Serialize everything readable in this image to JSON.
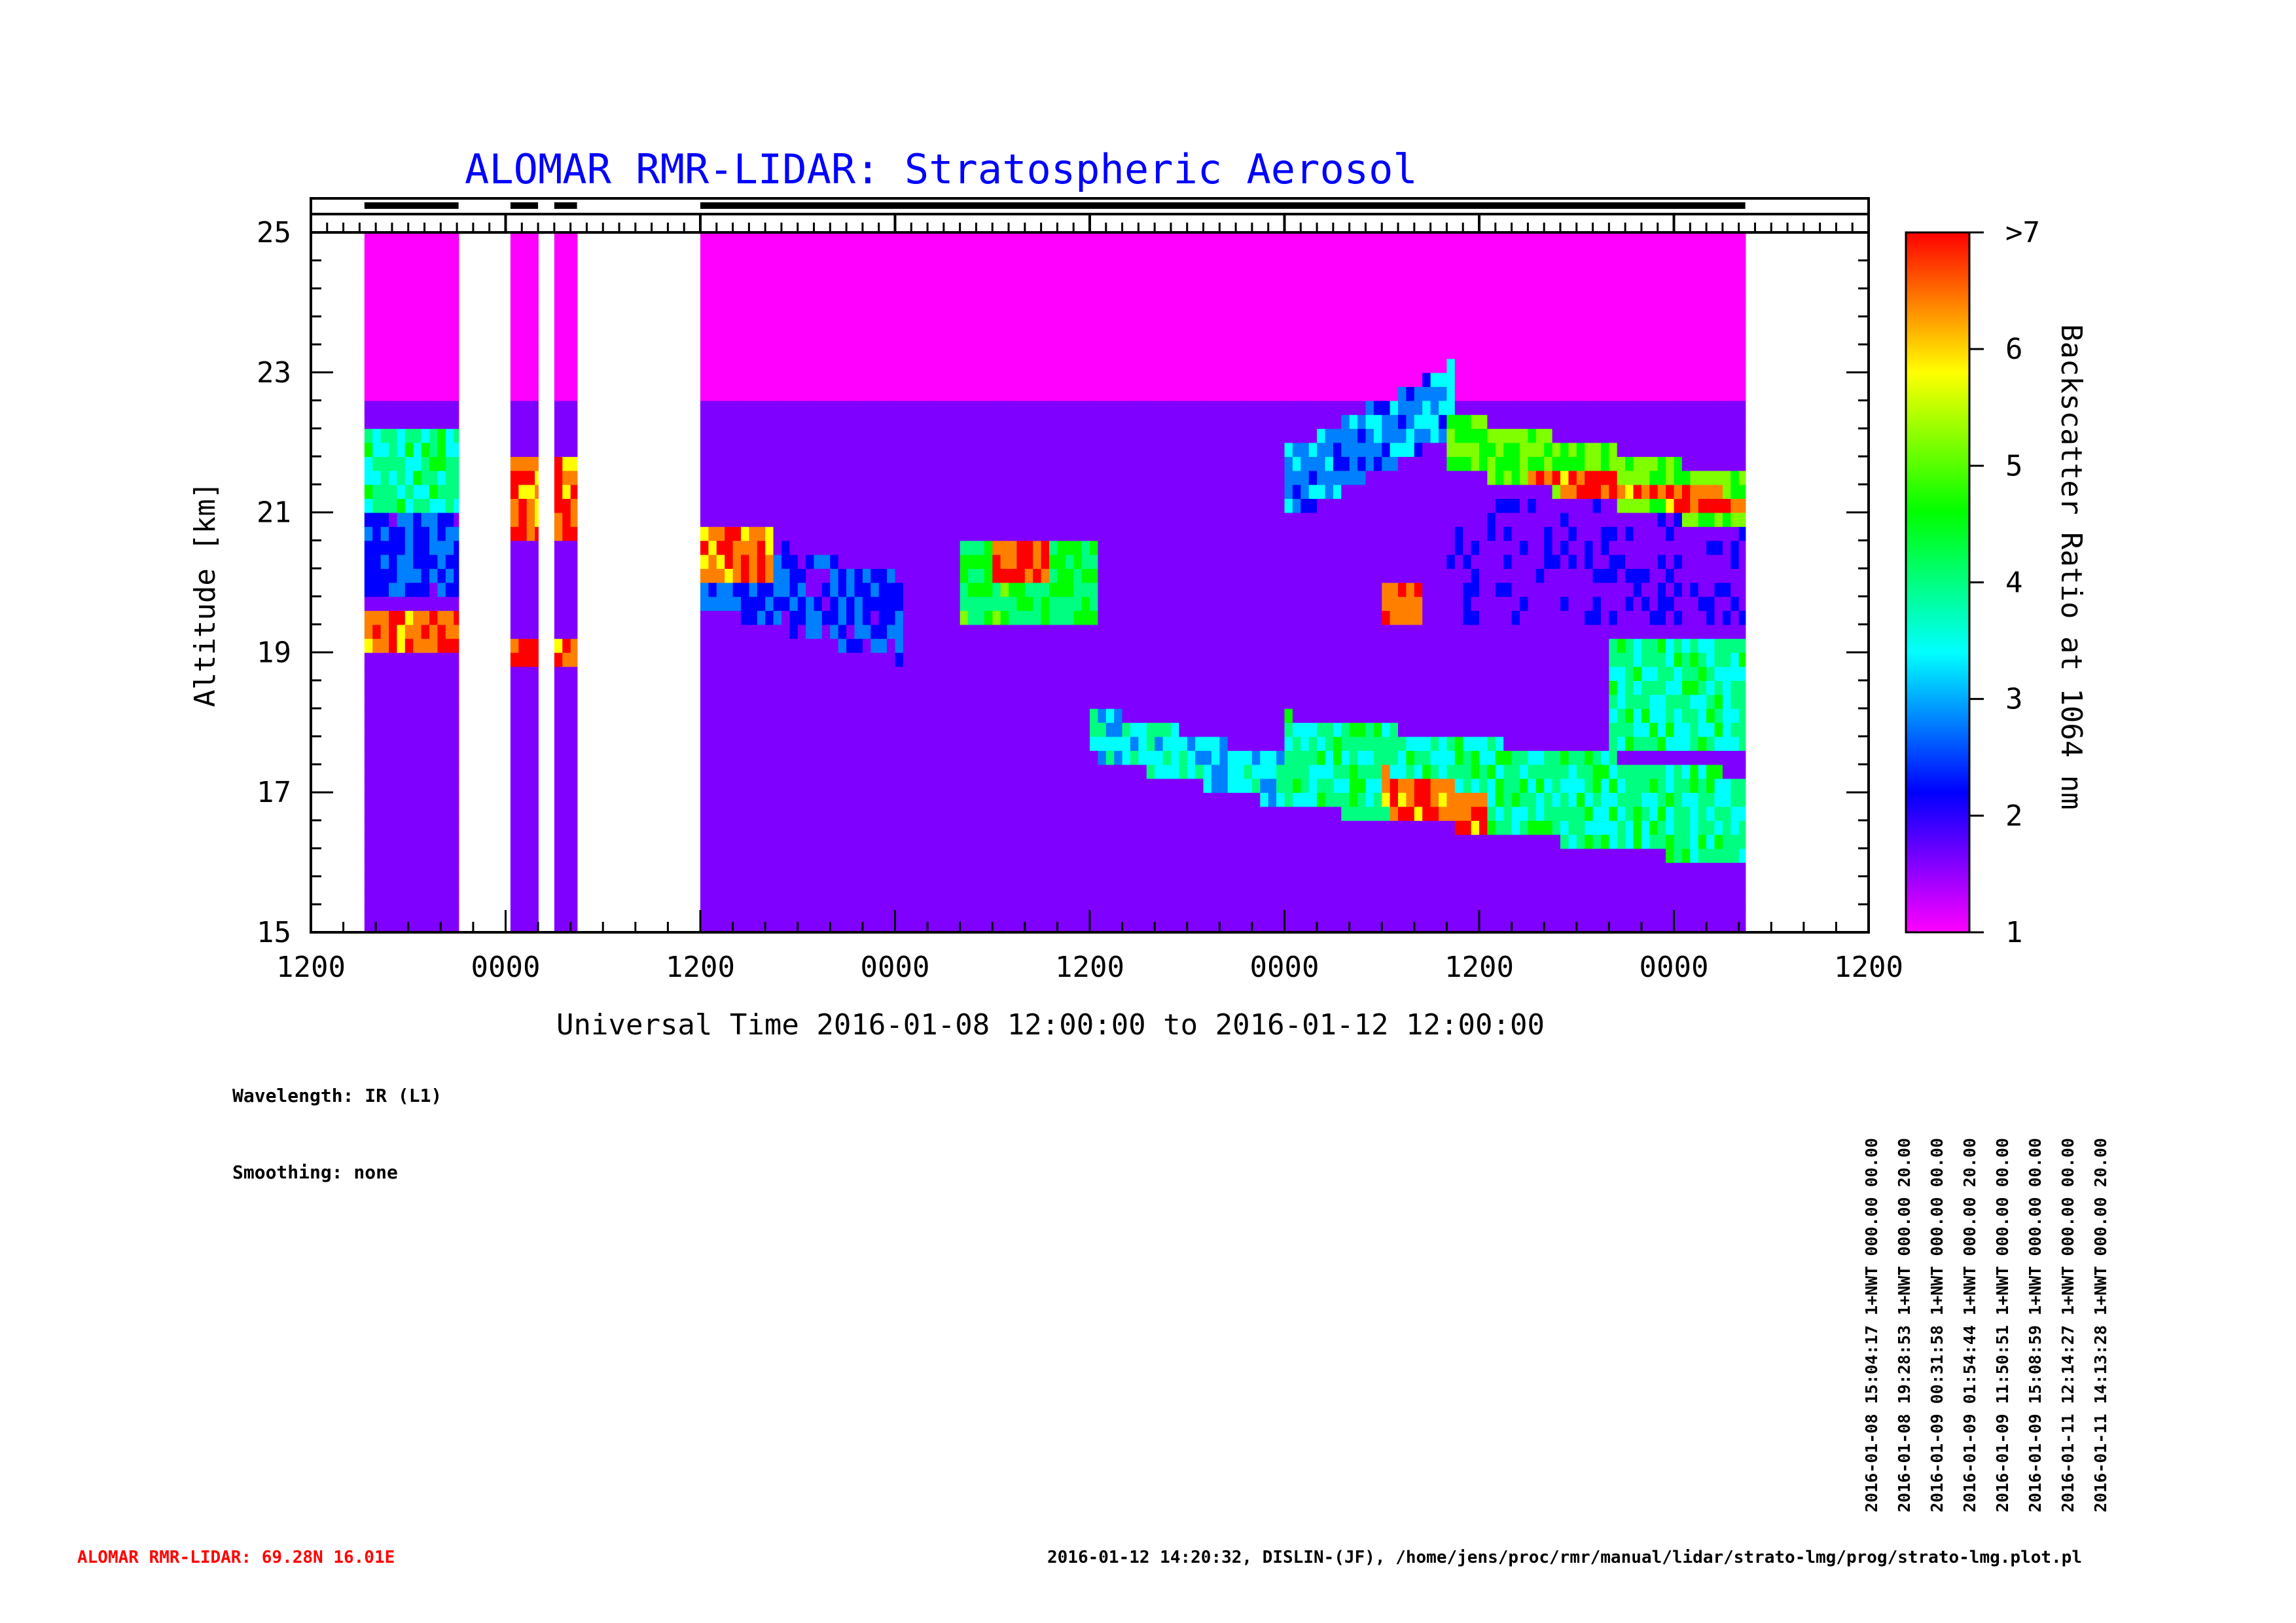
{
  "title": "ALOMAR RMR-LIDAR: Stratospheric Aerosol",
  "xlabel": "Universal Time 2016-01-08 12:00:00 to 2016-01-12 12:00:00",
  "ylabel": "Altitude [km]",
  "colorbar": {
    "label": "Backscatter Ratio at 1064 nm",
    "ticks": [
      "1",
      "2",
      "3",
      "4",
      "5",
      "6",
      ">7"
    ],
    "range": [
      1,
      7
    ],
    "colors": [
      "#ff00ff",
      "#8000ff",
      "#0000ff",
      "#0080ff",
      "#00ffff",
      "#00ff80",
      "#00ff00",
      "#80ff00",
      "#ffff00",
      "#ff8000",
      "#ff0000"
    ]
  },
  "info": {
    "wavelength": "Wavelength: IR (L1)",
    "smoothing": "Smoothing: none"
  },
  "runs": [
    "2016-01-08 15:04:17 1+NWT 000.00 00.00",
    "2016-01-08 19:28:53 1+NWT 000.00 20.00",
    "2016-01-09 00:31:58 1+NWT 000.00 00.00",
    "2016-01-09 01:54:44 1+NWT 000.00 20.00",
    "2016-01-09 11:50:51 1+NWT 000.00 00.00",
    "2016-01-09 15:08:59 1+NWT 000.00 00.00",
    "2016-01-11 12:14:27 1+NWT 000.00 00.00",
    "2016-01-11 14:13:28 1+NWT 000.00 20.00"
  ],
  "footer": {
    "station": "ALOMAR RMR-LIDAR: 69.28N 16.01E",
    "meta": "2016-01-12 14:20:32, DISLIN-(JF), /home/jens/proc/rmr/manual/lidar/strato-lmg/prog/strato-lmg.plot.pl"
  },
  "chart_data": {
    "type": "heatmap",
    "title": "ALOMAR RMR-LIDAR: Stratospheric Aerosol",
    "xlabel": "Universal Time 2016-01-08 12:00:00 to 2016-01-12 12:00:00",
    "ylabel": "Altitude [km]",
    "x_unit": "hours since 2016-01-08 12:00 UT",
    "xlim": [
      0,
      96
    ],
    "ylim": [
      15,
      25
    ],
    "x_ticks": [
      {
        "value": 0,
        "label": "1200"
      },
      {
        "value": 12,
        "label": "0000"
      },
      {
        "value": 24,
        "label": "1200"
      },
      {
        "value": 36,
        "label": "0000"
      },
      {
        "value": 48,
        "label": "1200"
      },
      {
        "value": 60,
        "label": "0000"
      },
      {
        "value": 72,
        "label": "1200"
      },
      {
        "value": 84,
        "label": "0000"
      },
      {
        "value": 96,
        "label": "1200"
      }
    ],
    "y_ticks": [
      15,
      17,
      19,
      21,
      23,
      25
    ],
    "measurement_periods_hours": [
      [
        3.3,
        9.1
      ],
      [
        12.3,
        14.0
      ],
      [
        15.0,
        16.4
      ],
      [
        24.0,
        88.4
      ]
    ],
    "layers": [
      {
        "segment": "3.3-9.1 h",
        "altitude_km": [
          18.8,
          19.5
        ],
        "backscatter_ratio": ">7"
      },
      {
        "segment": "3.3-9.1 h",
        "altitude_km": [
          21.0,
          22.2
        ],
        "backscatter_ratio": 5
      },
      {
        "segment": "12.3-16.4 h",
        "altitude_km": [
          20.4,
          21.6
        ],
        "backscatter_ratio": ">7"
      },
      {
        "segment": "24-28 h",
        "altitude_km": [
          19.8,
          20.5
        ],
        "backscatter_ratio": ">7"
      },
      {
        "segment": "40-48 h",
        "altitude_km": [
          19.3,
          20.4
        ],
        "backscatter_ratio": 6
      },
      {
        "segment": "66-68 h",
        "altitude_km": [
          19.4,
          19.7
        ],
        "backscatter_ratio": ">7"
      },
      {
        "segment": "74-88 h",
        "altitude_km": [
          21.0,
          21.7
        ],
        "backscatter_ratio": 6
      },
      {
        "segment": "60-88 h",
        "altitude_km": [
          16.3,
          17.6
        ],
        "backscatter_ratio": ">7"
      }
    ]
  }
}
